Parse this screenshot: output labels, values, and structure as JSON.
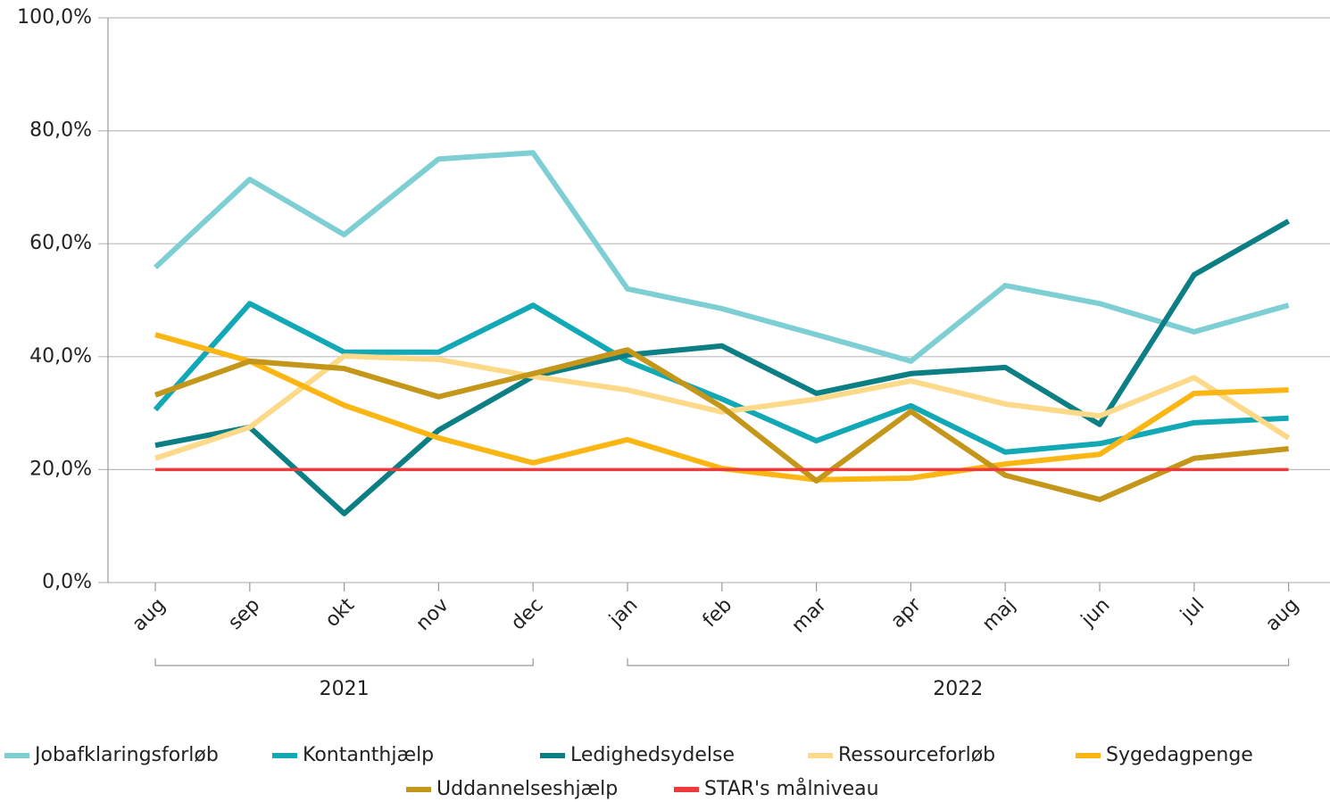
{
  "chart_data": {
    "type": "line",
    "categories": [
      "aug",
      "sep",
      "okt",
      "nov",
      "dec",
      "jan",
      "feb",
      "mar",
      "apr",
      "maj",
      "jun",
      "jul",
      "aug"
    ],
    "category_groups": [
      {
        "label": "2021",
        "start": 0,
        "end": 4
      },
      {
        "label": "2022",
        "start": 5,
        "end": 12
      }
    ],
    "series": [
      {
        "name": "Jobafklaringsforløb",
        "color": "#7ecfd4",
        "values": [
          55.8,
          71.4,
          61.6,
          75.0,
          76.1,
          52.0,
          48.5,
          43.9,
          39.2,
          52.6,
          49.4,
          44.4,
          49.1
        ]
      },
      {
        "name": "Kontanthjælp",
        "color": "#12a8b5",
        "values": [
          30.6,
          49.4,
          40.8,
          40.8,
          49.1,
          39.2,
          32.5,
          25.1,
          31.3,
          23.1,
          24.6,
          28.3,
          29.1
        ]
      },
      {
        "name": "Ledighedsydelse",
        "color": "#0c7f85",
        "values": [
          24.3,
          27.5,
          12.2,
          27.0,
          36.5,
          40.3,
          41.9,
          33.5,
          37.0,
          38.1,
          28.0,
          54.5,
          64.0
        ]
      },
      {
        "name": "Ressourceforløb",
        "color": "#fdd98a",
        "values": [
          22.0,
          27.5,
          40.1,
          39.5,
          36.5,
          34.1,
          30.2,
          32.5,
          35.7,
          31.6,
          29.5,
          36.3,
          25.6
        ]
      },
      {
        "name": "Sygedagpenge",
        "color": "#fbb614",
        "values": [
          43.9,
          39.2,
          31.4,
          25.6,
          21.2,
          25.3,
          20.2,
          18.2,
          18.5,
          21.0,
          22.7,
          33.5,
          34.1
        ]
      },
      {
        "name": "Uddannelseshjælp",
        "color": "#c4961a",
        "values": [
          33.2,
          39.2,
          37.9,
          32.9,
          37.0,
          41.2,
          31.1,
          18.0,
          30.3,
          19.0,
          14.7,
          22.0,
          23.7
        ]
      },
      {
        "name": "STAR's målniveau",
        "color": "#ee3a3a",
        "values": [
          20,
          20,
          20,
          20,
          20,
          20,
          20,
          20,
          20,
          20,
          20,
          20,
          20
        ]
      }
    ],
    "ylim": [
      0,
      100
    ],
    "yticks": [
      {
        "value": 0,
        "label": "0,0%"
      },
      {
        "value": 20,
        "label": "20,0%"
      },
      {
        "value": 40,
        "label": "40,0%"
      },
      {
        "value": 60,
        "label": "60,0%"
      },
      {
        "value": 80,
        "label": "80,0%"
      },
      {
        "value": 100,
        "label": "100,0%"
      }
    ],
    "grid": true,
    "legend": "bottom"
  }
}
